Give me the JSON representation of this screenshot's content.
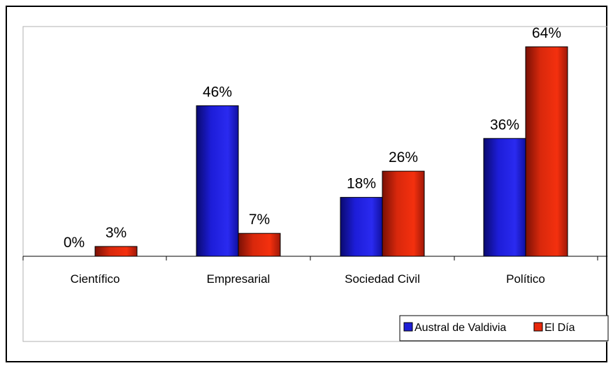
{
  "chart_data": {
    "type": "bar",
    "title": "",
    "xlabel": "",
    "ylabel": "",
    "ylim": [
      0,
      66
    ],
    "grid": false,
    "legend_position": "bottom-right",
    "categories": [
      "Científico",
      "Empresarial",
      "Sociedad Civil",
      "Político"
    ],
    "series": [
      {
        "name": "Austral de Valdivia",
        "values": [
          0,
          46,
          18,
          36
        ],
        "labels": [
          "0%",
          "46%",
          "18%",
          "36%"
        ],
        "color": "#1f1fd6"
      },
      {
        "name": "El Día",
        "values": [
          3,
          7,
          26,
          64
        ],
        "labels": [
          "3%",
          "7%",
          "26%",
          "64%"
        ],
        "color": "#e8280c"
      }
    ]
  }
}
